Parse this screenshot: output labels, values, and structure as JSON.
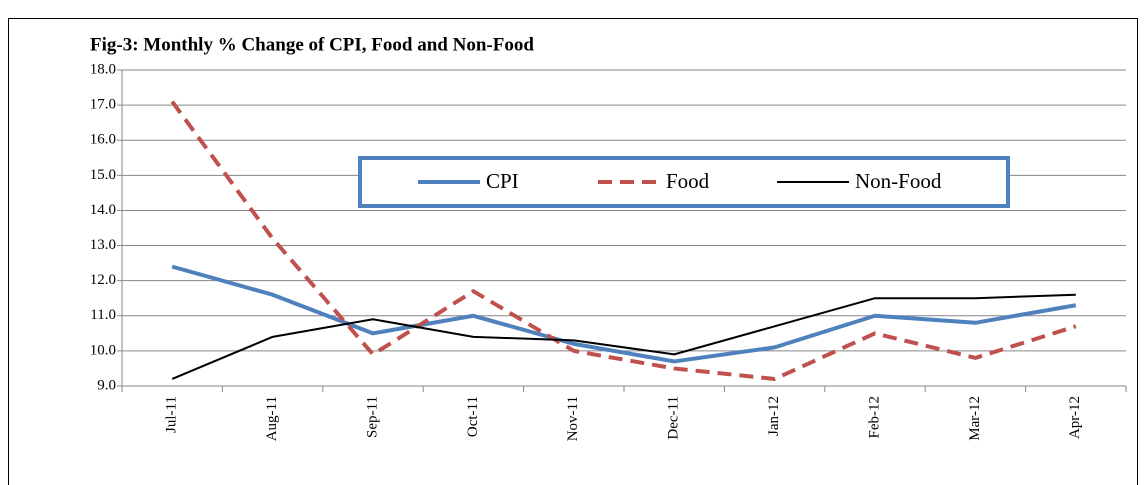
{
  "chart_data": {
    "type": "line",
    "title": "Fig-3: Monthly % Change of CPI, Food and Non-Food",
    "categories": [
      "Jul-11",
      "Aug-11",
      "Sep-11",
      "Oct-11",
      "Nov-11",
      "Dec-11",
      "Jan-12",
      "Feb-12",
      "Mar-12",
      "Apr-12"
    ],
    "series": [
      {
        "name": "CPI",
        "color": "#4f81bd",
        "dash": "solid",
        "width": 4,
        "values": [
          12.4,
          11.6,
          10.5,
          11.0,
          10.2,
          9.7,
          10.1,
          11.0,
          10.8,
          11.3
        ]
      },
      {
        "name": "Food",
        "color": "#c0504d",
        "dash": "dashed",
        "width": 4,
        "values": [
          17.1,
          13.2,
          9.9,
          11.7,
          10.0,
          9.5,
          9.2,
          10.5,
          9.8,
          10.7
        ]
      },
      {
        "name": "Non-Food",
        "color": "#000000",
        "dash": "solid",
        "width": 2,
        "values": [
          9.2,
          10.4,
          10.9,
          10.4,
          10.3,
          9.9,
          10.7,
          11.5,
          11.5,
          11.6
        ]
      }
    ],
    "ylim": [
      9,
      18
    ],
    "yticks": [
      {
        "value": 9,
        "label": "9.0"
      },
      {
        "value": 10,
        "label": "10.0"
      },
      {
        "value": 11,
        "label": "11.0"
      },
      {
        "value": 12,
        "label": "12.0"
      },
      {
        "value": 13,
        "label": "13.0"
      },
      {
        "value": 14,
        "label": "14.0"
      },
      {
        "value": 15,
        "label": "15.0"
      },
      {
        "value": 16,
        "label": "16.0"
      },
      {
        "value": 17,
        "label": "17.0"
      },
      {
        "value": 18,
        "label": "18.0"
      }
    ],
    "grid": true
  }
}
